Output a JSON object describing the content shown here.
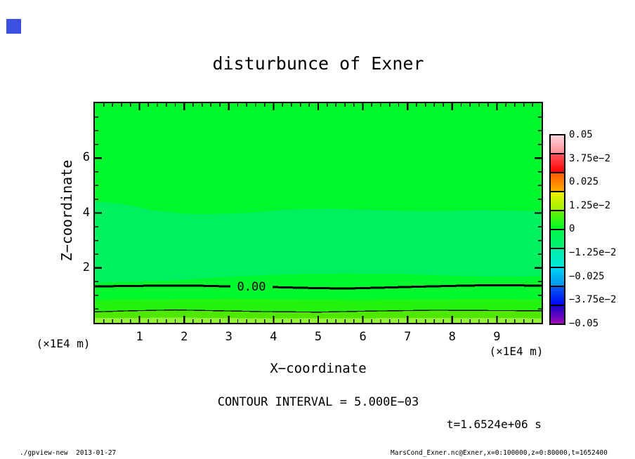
{
  "corner_marker": {
    "color": "#3b4fe1"
  },
  "title": "disturbunce of Exner",
  "axes": {
    "x_title": "X−coordinate",
    "y_title": "Z−coordinate",
    "x_unit_left": "(×1E4 m)",
    "x_unit_right": "(×1E4 m)",
    "x_tick_labels": [
      "1",
      "2",
      "3",
      "4",
      "5",
      "6",
      "7",
      "8",
      "9"
    ],
    "y_tick_labels": [
      "2",
      "4",
      "6"
    ]
  },
  "annotations": {
    "contour_interval": "CONTOUR INTERVAL = 5.000E−03",
    "time": "t=1.6524e+06 s"
  },
  "footer": {
    "left": "./gpview-new  2013-01-27",
    "right": "MarsCond_Exner.nc@Exner,x=0:100000,z=0:80000,t=1652400"
  },
  "colorbar": {
    "labels": [
      "0.05",
      "3.75e−2",
      "0.025",
      "1.25e−2",
      "0",
      "−1.25e−2",
      "−0.025",
      "−3.75e−2",
      "−0.05"
    ],
    "segments": [
      {
        "from": "#ffd6de",
        "to": "#ff8a96"
      },
      {
        "from": "#ff555c",
        "to": "#ff0000"
      },
      {
        "from": "#ff5a00",
        "to": "#ffaa00"
      },
      {
        "from": "#f0f000",
        "to": "#9ef200"
      },
      {
        "from": "#66ee00",
        "to": "#00fa28"
      },
      {
        "from": "#00f748",
        "to": "#00f176"
      },
      {
        "from": "#00eda6",
        "to": "#00e7da"
      },
      {
        "from": "#00d4f4",
        "to": "#0092ec"
      },
      {
        "from": "#005cee",
        "to": "#0004f8"
      },
      {
        "from": "#1a00ce",
        "to": "#9c0ab4"
      }
    ]
  },
  "chart_data": {
    "type": "heatmap",
    "subtype": "filled-contour",
    "title": "disturbunce of Exner",
    "xlabel": "X−coordinate",
    "ylabel": "Z−coordinate",
    "x_unit": "(×1E4 m)",
    "xlim": [
      0,
      10
    ],
    "ylim": [
      0,
      8
    ],
    "x_ticks": [
      1,
      2,
      3,
      4,
      5,
      6,
      7,
      8,
      9
    ],
    "y_ticks": [
      2,
      4,
      6
    ],
    "x_minor_step": 0.2,
    "y_minor_step": 0.5,
    "grid": false,
    "legend_position": "right",
    "contour_interval": 0.005,
    "colorbar_levels": [
      0.05,
      0.0375,
      0.025,
      0.0125,
      0,
      -0.0125,
      -0.025,
      -0.0375,
      -0.05
    ],
    "fill_bands": [
      {
        "name": "upper-region",
        "color": "#00f72d",
        "value_approx": -0.0015,
        "top_edge": [
          [
            0,
            8
          ],
          [
            10,
            8
          ]
        ]
      },
      {
        "name": "mid-mint-band",
        "color": "#00f160",
        "value_approx": -0.0045,
        "top_edge": [
          [
            0,
            4.42
          ],
          [
            0.6,
            4.33
          ],
          [
            1.3,
            4.1
          ],
          [
            2,
            3.97
          ],
          [
            2.6,
            3.96
          ],
          [
            3.4,
            4.0
          ],
          [
            4.3,
            4.12
          ],
          [
            5.2,
            4.16
          ],
          [
            6.3,
            4.1
          ],
          [
            7.4,
            4.06
          ],
          [
            8.6,
            4.1
          ],
          [
            10,
            4.07
          ]
        ]
      },
      {
        "name": "near-zero-band",
        "color": "#00f72d",
        "value_approx": 0.0015,
        "top_edge": [
          [
            0,
            1.47
          ],
          [
            0.8,
            1.5
          ],
          [
            1.8,
            1.55
          ],
          [
            3,
            1.68
          ],
          [
            4.2,
            1.76
          ],
          [
            5.6,
            1.8
          ],
          [
            7,
            1.77
          ],
          [
            8.3,
            1.7
          ],
          [
            9.2,
            1.68
          ],
          [
            10,
            1.7
          ]
        ]
      },
      {
        "name": "low-band-1",
        "color": "#22f30f",
        "value_approx": 0.004,
        "top_edge": [
          [
            0,
            0.83
          ],
          [
            1.5,
            0.86
          ],
          [
            3,
            0.88
          ],
          [
            4.5,
            0.85
          ],
          [
            6,
            0.83
          ],
          [
            7.5,
            0.86
          ],
          [
            9,
            0.87
          ],
          [
            10,
            0.85
          ]
        ]
      },
      {
        "name": "low-band-2",
        "color": "#4fe800",
        "value_approx": 0.007,
        "top_edge": [
          [
            0,
            0.4
          ],
          [
            0.8,
            0.44
          ],
          [
            1.8,
            0.47
          ],
          [
            2.8,
            0.44
          ],
          [
            3.8,
            0.41
          ],
          [
            5,
            0.39
          ],
          [
            6.2,
            0.43
          ],
          [
            7.6,
            0.46
          ],
          [
            8.8,
            0.45
          ],
          [
            10,
            0.44
          ]
        ]
      },
      {
        "name": "surface-band",
        "color": "#90f23a",
        "value_approx": 0.01,
        "top_edge": [
          [
            0,
            0.18
          ],
          [
            2,
            0.19
          ],
          [
            4,
            0.16
          ],
          [
            6,
            0.17
          ],
          [
            8,
            0.18
          ],
          [
            10,
            0.17
          ]
        ]
      }
    ],
    "contour_lines": [
      {
        "value": 0.0,
        "label": "0.00",
        "style": "thick",
        "points": [
          [
            0,
            1.33
          ],
          [
            0.7,
            1.34
          ],
          [
            1.6,
            1.36
          ],
          [
            2.4,
            1.35
          ],
          [
            3.2,
            1.32
          ],
          [
            4,
            1.3
          ],
          [
            4.8,
            1.27
          ],
          [
            5.6,
            1.25
          ],
          [
            6.4,
            1.28
          ],
          [
            7.3,
            1.32
          ],
          [
            8.4,
            1.36
          ],
          [
            9.3,
            1.37
          ],
          [
            10,
            1.35
          ]
        ]
      },
      {
        "value": 0.005,
        "label": "",
        "style": "thin",
        "points": [
          [
            0,
            0.4
          ],
          [
            0.8,
            0.44
          ],
          [
            1.8,
            0.47
          ],
          [
            2.8,
            0.44
          ],
          [
            3.8,
            0.41
          ],
          [
            5,
            0.39
          ],
          [
            6.2,
            0.43
          ],
          [
            7.6,
            0.46
          ],
          [
            8.8,
            0.45
          ],
          [
            10,
            0.44
          ]
        ]
      }
    ]
  }
}
